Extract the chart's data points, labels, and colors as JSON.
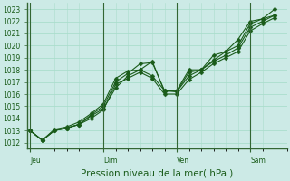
{
  "title": "",
  "xlabel": "Pression niveau de la mer( hPa )",
  "bg_color": "#cceae6",
  "grid_color": "#aaddcc",
  "line_color": "#1a5c1a",
  "border_color": "#336633",
  "ylim": [
    1011.5,
    1023.5
  ],
  "yticks": [
    1012,
    1013,
    1014,
    1015,
    1016,
    1017,
    1018,
    1019,
    1020,
    1021,
    1022,
    1023
  ],
  "xtick_labels": [
    "Jeu",
    "Dim",
    "Ven",
    "Sam"
  ],
  "xtick_positions": [
    0,
    3,
    6,
    9
  ],
  "xlim": [
    -0.1,
    10.5
  ],
  "series1_x": [
    0,
    0.5,
    1.0,
    1.5,
    2.0,
    2.5,
    3.0,
    3.5,
    4.0,
    4.5,
    5.0,
    5.5,
    6.0,
    6.5,
    7.0,
    7.5,
    8.0,
    8.5,
    9.0,
    9.5,
    10.0
  ],
  "series1_y": [
    1013.0,
    1012.2,
    1013.0,
    1013.2,
    1013.5,
    1014.3,
    1015.0,
    1017.0,
    1017.7,
    1018.5,
    1018.6,
    1016.3,
    1016.2,
    1017.8,
    1018.0,
    1019.2,
    1019.5,
    1020.0,
    1021.8,
    1022.2,
    1022.5
  ],
  "series2_x": [
    0,
    0.5,
    1.0,
    1.5,
    2.0,
    2.5,
    3.0,
    3.5,
    4.0,
    4.5,
    5.0,
    5.5,
    6.0,
    6.5,
    7.0,
    7.5,
    8.0,
    8.5,
    9.0,
    9.5,
    10.0
  ],
  "series2_y": [
    1013.0,
    1012.2,
    1013.0,
    1013.2,
    1013.5,
    1014.2,
    1014.8,
    1016.5,
    1017.5,
    1018.0,
    1017.5,
    1016.3,
    1016.2,
    1017.5,
    1018.0,
    1018.7,
    1019.2,
    1019.8,
    1021.5,
    1022.0,
    1022.5
  ],
  "series3_x": [
    0,
    0.5,
    1.0,
    1.5,
    2.0,
    2.5,
    3.0,
    3.5,
    4.0,
    4.5,
    5.0,
    5.5,
    6.0,
    6.5,
    7.0,
    7.5,
    8.0,
    8.5,
    9.0,
    9.5,
    10.0
  ],
  "series3_y": [
    1013.0,
    1012.2,
    1013.1,
    1013.3,
    1013.7,
    1014.4,
    1015.2,
    1017.3,
    1017.9,
    1018.0,
    1018.7,
    1016.2,
    1016.3,
    1018.0,
    1018.0,
    1018.8,
    1019.5,
    1020.5,
    1022.0,
    1022.2,
    1023.0
  ],
  "series4_x": [
    0,
    0.5,
    1.0,
    1.5,
    2.0,
    2.5,
    3.0,
    3.5,
    4.0,
    4.5,
    5.0,
    5.5,
    6.0,
    6.5,
    7.0,
    7.5,
    8.0,
    8.5,
    9.0,
    9.5,
    10.0
  ],
  "series4_y": [
    1013.0,
    1012.2,
    1013.0,
    1013.2,
    1013.5,
    1014.0,
    1014.7,
    1016.8,
    1017.3,
    1017.8,
    1017.3,
    1016.0,
    1016.0,
    1017.2,
    1017.8,
    1018.5,
    1019.0,
    1019.5,
    1021.2,
    1021.8,
    1022.3
  ],
  "vline_positions": [
    0,
    3,
    6,
    9
  ],
  "marker_size": 2.5,
  "linewidth": 0.8,
  "tick_fontsize": 5.5,
  "xlabel_fontsize": 7.5
}
